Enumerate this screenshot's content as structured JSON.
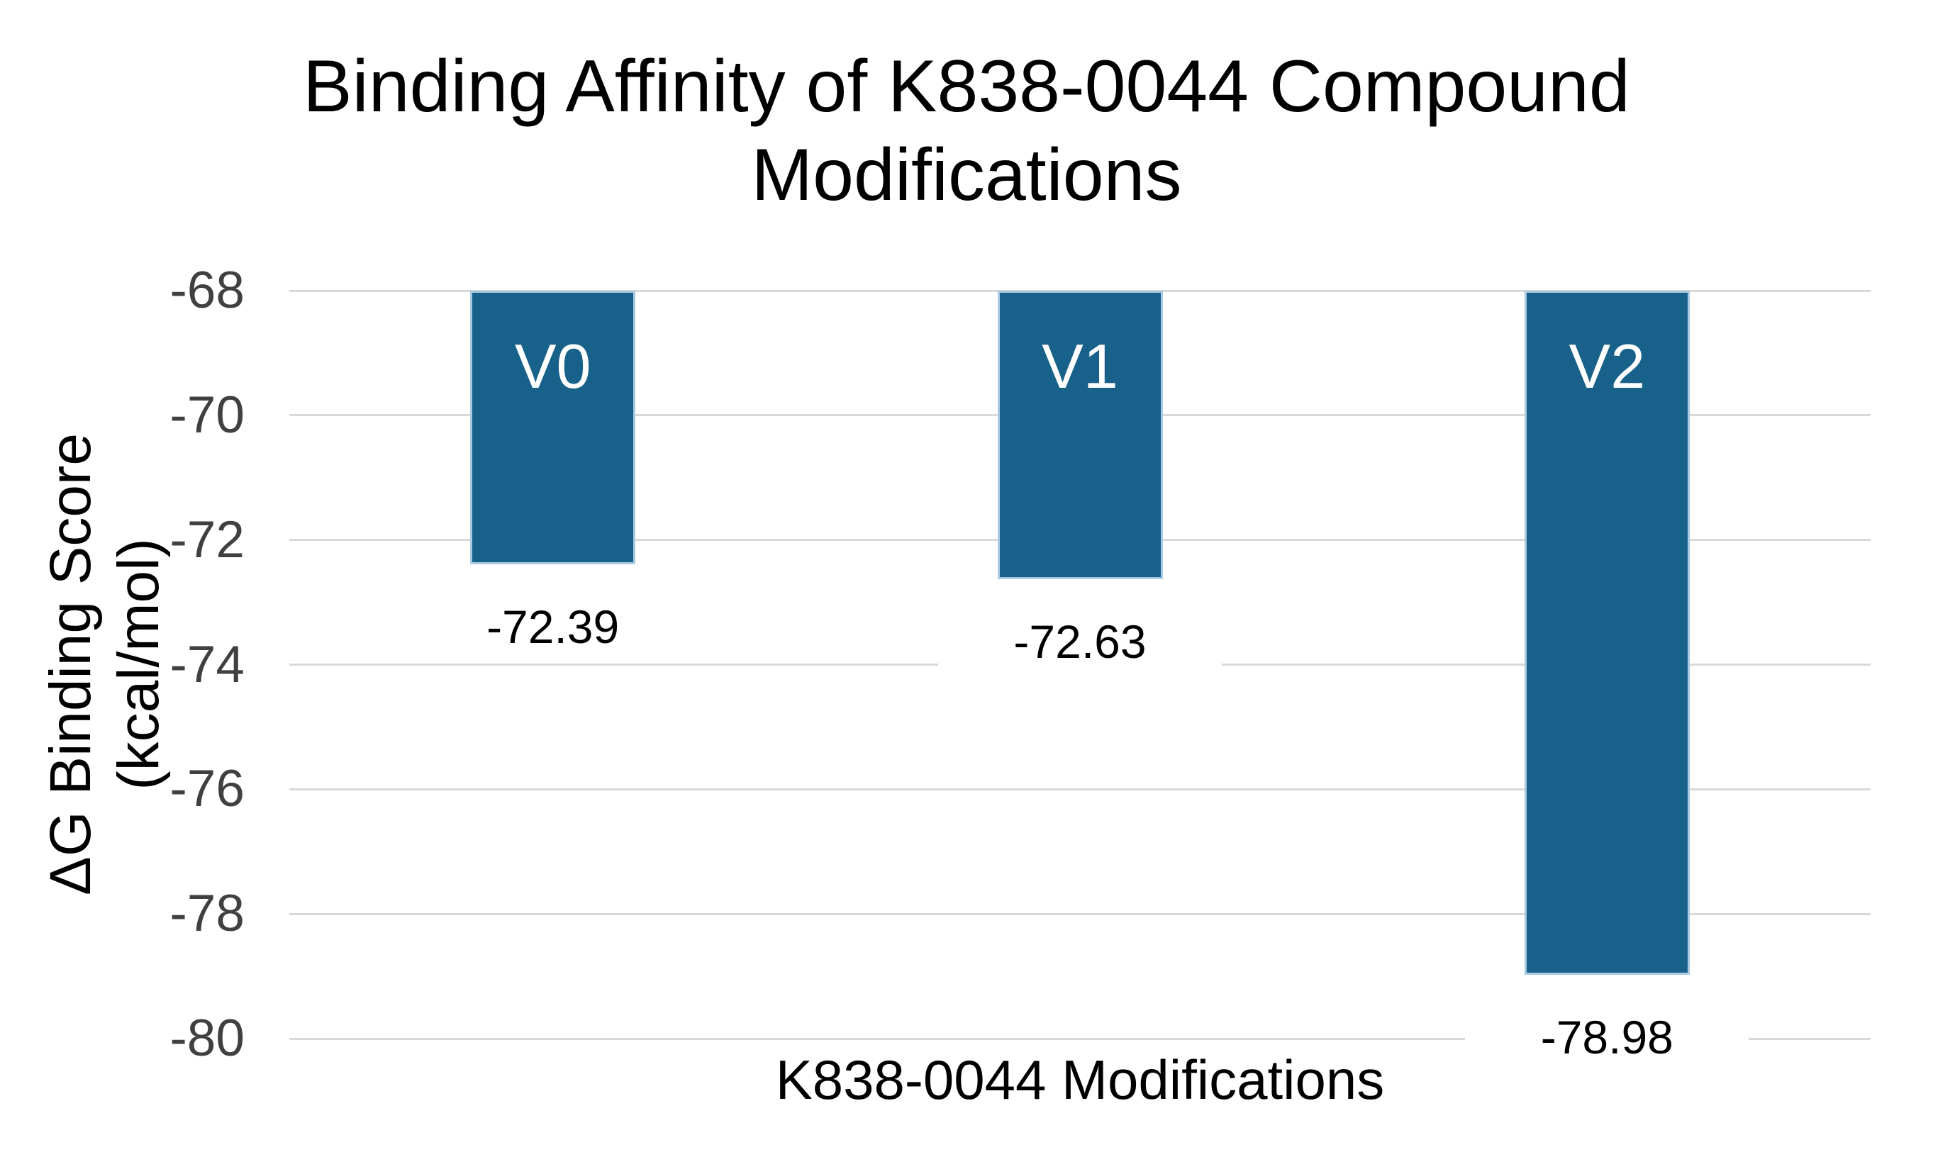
{
  "chart_data": {
    "type": "bar",
    "title": "Binding Affinity of K838-0044 Compound Modifications",
    "title_lines": [
      "Binding Affinity of K838-0044 Compound",
      "Modifications"
    ],
    "xlabel": "K838-0044 Modifications",
    "ylabel": "ΔG Binding Score (kcal/mol)",
    "ylabel_lines": [
      "ΔG Binding Score",
      "(kcal/mol)"
    ],
    "categories": [
      "V0",
      "V1",
      "V2"
    ],
    "values": [
      -72.39,
      -72.63,
      -78.98
    ],
    "data_labels": [
      "-72.39",
      "-72.63",
      "-78.98"
    ],
    "bar_base": -68,
    "ylim": [
      -80,
      -68
    ],
    "yticks": [
      -68,
      -70,
      -72,
      -74,
      -76,
      -78,
      -80
    ],
    "grid": true,
    "legend": false,
    "colors": {
      "bar": "#17618a",
      "bar_border": "#a9c9e2",
      "bar_label": "#ffffff",
      "gridline": "#d9d9d9",
      "tick_label": "#404040",
      "data_label": "#000000",
      "title": "#000000",
      "axis_label": "#000000",
      "background": "#ffffff"
    }
  }
}
